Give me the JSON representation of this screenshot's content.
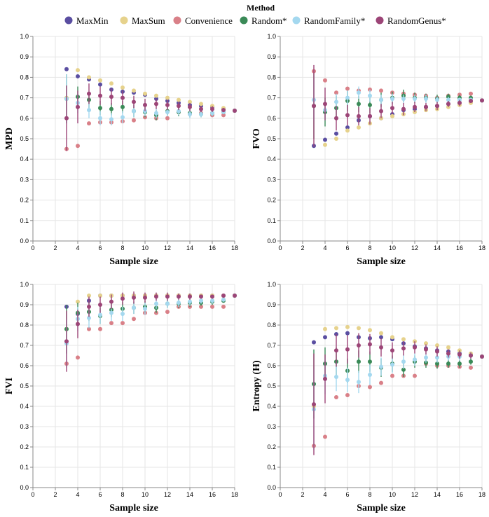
{
  "legend": {
    "title": "Method",
    "entries": [
      {
        "name": "MaxMin",
        "color": "#5a4ea1"
      },
      {
        "name": "MaxSum",
        "color": "#e6d28c"
      },
      {
        "name": "Convenience",
        "color": "#d98088"
      },
      {
        "name": "Random*",
        "color": "#3a8a57"
      },
      {
        "name": "RandomFamily*",
        "color": "#a4d8ef"
      },
      {
        "name": "RandomGenus*",
        "color": "#9c4577"
      }
    ]
  },
  "chart_data": [
    {
      "type": "scatter",
      "panel": "top-left",
      "xlabel": "Sample size",
      "ylabel": "MPD",
      "xlim": [
        0,
        18
      ],
      "ylim": [
        0,
        1
      ],
      "xticks": [
        0,
        2,
        4,
        6,
        8,
        10,
        12,
        14,
        16,
        18
      ],
      "yticks": [
        0.0,
        0.1,
        0.2,
        0.3,
        0.4,
        0.5,
        0.6,
        0.7,
        0.8,
        0.9,
        1.0
      ],
      "x": [
        3,
        4,
        5,
        6,
        7,
        8,
        9,
        10,
        11,
        12,
        13,
        14,
        15,
        16,
        17,
        18
      ],
      "series": [
        {
          "name": "MaxMin",
          "values": [
            0.84,
            0.805,
            0.79,
            0.765,
            0.74,
            0.73,
            0.725,
            0.715,
            0.695,
            0.685,
            0.675,
            0.665,
            0.66,
            0.655,
            0.645,
            0.637
          ]
        },
        {
          "name": "MaxSum",
          "values": [
            0.7,
            0.835,
            0.8,
            0.785,
            0.77,
            0.75,
            0.735,
            0.72,
            0.71,
            0.7,
            0.69,
            0.68,
            0.67,
            0.66,
            0.65,
            0.637
          ]
        },
        {
          "name": "Convenience",
          "values": [
            0.45,
            0.465,
            0.575,
            0.58,
            0.58,
            0.585,
            0.59,
            0.605,
            0.6,
            0.6,
            0.63,
            0.62,
            0.625,
            0.615,
            0.615,
            0.637
          ]
        },
        {
          "name": "Random*",
          "values": [
            0.695,
            0.705,
            0.69,
            0.65,
            0.645,
            0.655,
            0.635,
            0.63,
            0.615,
            0.635,
            0.63,
            0.625,
            0.62,
            0.625,
            0.63,
            0.637
          ],
          "err": [
            0.12,
            0.05,
            0.04,
            0.035,
            0.03,
            0.03,
            0.03,
            0.025,
            0.025,
            0.02,
            0.02,
            0.02,
            0.015,
            0.015,
            0.01,
            0.0
          ]
        },
        {
          "name": "RandomFamily*",
          "values": [
            0.695,
            0.675,
            0.64,
            0.6,
            0.595,
            0.605,
            0.635,
            0.635,
            0.625,
            0.63,
            0.635,
            0.62,
            0.62,
            0.625,
            0.63,
            0.637
          ],
          "err": [
            0.12,
            0.05,
            0.04,
            0.035,
            0.03,
            0.03,
            0.03,
            0.025,
            0.025,
            0.02,
            0.02,
            0.02,
            0.015,
            0.015,
            0.01,
            0.0
          ]
        },
        {
          "name": "RandomGenus*",
          "values": [
            0.6,
            0.655,
            0.72,
            0.71,
            0.705,
            0.7,
            0.68,
            0.665,
            0.67,
            0.665,
            0.66,
            0.655,
            0.645,
            0.645,
            0.64,
            0.637
          ],
          "err": [
            0.16,
            0.08,
            0.05,
            0.045,
            0.04,
            0.035,
            0.03,
            0.03,
            0.025,
            0.025,
            0.02,
            0.02,
            0.015,
            0.015,
            0.01,
            0.0
          ]
        }
      ]
    },
    {
      "type": "scatter",
      "panel": "top-right",
      "xlabel": "Sample size",
      "ylabel": "FVO",
      "xlim": [
        0,
        18
      ],
      "ylim": [
        0,
        1
      ],
      "xticks": [
        0,
        2,
        4,
        6,
        8,
        10,
        12,
        14,
        16,
        18
      ],
      "yticks": [
        0.0,
        0.1,
        0.2,
        0.3,
        0.4,
        0.5,
        0.6,
        0.7,
        0.8,
        0.9,
        1.0
      ],
      "x": [
        3,
        4,
        5,
        6,
        7,
        8,
        9,
        10,
        11,
        12,
        13,
        14,
        15,
        16,
        17,
        18
      ],
      "series": [
        {
          "name": "MaxMin",
          "values": [
            0.465,
            0.495,
            0.525,
            0.555,
            0.59,
            0.61,
            0.6,
            0.62,
            0.64,
            0.645,
            0.655,
            0.66,
            0.67,
            0.675,
            0.68,
            0.687
          ]
        },
        {
          "name": "MaxSum",
          "values": [
            0.66,
            0.47,
            0.5,
            0.54,
            0.555,
            0.575,
            0.6,
            0.61,
            0.62,
            0.63,
            0.64,
            0.645,
            0.655,
            0.665,
            0.675,
            0.687
          ]
        },
        {
          "name": "Convenience",
          "values": [
            0.83,
            0.785,
            0.725,
            0.745,
            0.735,
            0.74,
            0.735,
            0.725,
            0.72,
            0.715,
            0.71,
            0.7,
            0.71,
            0.715,
            0.72,
            0.687
          ]
        },
        {
          "name": "Random*",
          "values": [
            0.66,
            0.63,
            0.65,
            0.685,
            0.67,
            0.665,
            0.69,
            0.7,
            0.71,
            0.7,
            0.7,
            0.695,
            0.705,
            0.7,
            0.7,
            0.687
          ],
          "err": [
            0.16,
            0.07,
            0.06,
            0.05,
            0.04,
            0.04,
            0.035,
            0.03,
            0.03,
            0.025,
            0.02,
            0.02,
            0.015,
            0.015,
            0.01,
            0.0
          ]
        },
        {
          "name": "RandomFamily*",
          "values": [
            0.69,
            0.64,
            0.68,
            0.7,
            0.725,
            0.71,
            0.69,
            0.695,
            0.695,
            0.695,
            0.695,
            0.69,
            0.69,
            0.69,
            0.69,
            0.687
          ],
          "err": [
            0.1,
            0.05,
            0.04,
            0.035,
            0.03,
            0.03,
            0.025,
            0.025,
            0.02,
            0.02,
            0.02,
            0.015,
            0.015,
            0.01,
            0.01,
            0.0
          ]
        },
        {
          "name": "RandomGenus*",
          "values": [
            0.66,
            0.67,
            0.6,
            0.615,
            0.61,
            0.61,
            0.635,
            0.65,
            0.645,
            0.655,
            0.655,
            0.66,
            0.67,
            0.675,
            0.685,
            0.687
          ],
          "err": [
            0.2,
            0.08,
            0.06,
            0.05,
            0.045,
            0.04,
            0.035,
            0.03,
            0.03,
            0.025,
            0.02,
            0.02,
            0.015,
            0.015,
            0.01,
            0.0
          ]
        }
      ]
    },
    {
      "type": "scatter",
      "panel": "bottom-left",
      "xlabel": "Sample size",
      "ylabel": "FVI",
      "xlim": [
        0,
        18
      ],
      "ylim": [
        0,
        1
      ],
      "xticks": [
        0,
        2,
        4,
        6,
        8,
        10,
        12,
        14,
        16,
        18
      ],
      "yticks": [
        0.0,
        0.1,
        0.2,
        0.3,
        0.4,
        0.5,
        0.6,
        0.7,
        0.8,
        0.9,
        1.0
      ],
      "x": [
        3,
        4,
        5,
        6,
        7,
        8,
        9,
        10,
        11,
        12,
        13,
        14,
        15,
        16,
        17,
        18
      ],
      "series": [
        {
          "name": "MaxMin",
          "values": [
            0.89,
            0.855,
            0.92,
            0.945,
            0.945,
            0.945,
            0.945,
            0.945,
            0.945,
            0.945,
            0.945,
            0.945,
            0.945,
            0.945,
            0.945,
            0.945
          ]
        },
        {
          "name": "MaxSum",
          "values": [
            0.78,
            0.915,
            0.945,
            0.945,
            0.945,
            0.945,
            0.945,
            0.945,
            0.945,
            0.945,
            0.945,
            0.945,
            0.945,
            0.945,
            0.945,
            0.945
          ]
        },
        {
          "name": "Convenience",
          "values": [
            0.61,
            0.64,
            0.78,
            0.78,
            0.81,
            0.81,
            0.83,
            0.86,
            0.86,
            0.865,
            0.89,
            0.89,
            0.89,
            0.89,
            0.89,
            0.945
          ]
        },
        {
          "name": "Random*",
          "values": [
            0.78,
            0.86,
            0.865,
            0.845,
            0.875,
            0.88,
            0.885,
            0.89,
            0.885,
            0.905,
            0.905,
            0.91,
            0.91,
            0.915,
            0.92,
            0.945
          ],
          "err": [
            0.12,
            0.05,
            0.045,
            0.04,
            0.035,
            0.035,
            0.03,
            0.03,
            0.025,
            0.02,
            0.02,
            0.02,
            0.015,
            0.015,
            0.01,
            0.0
          ]
        },
        {
          "name": "RandomFamily*",
          "values": [
            0.71,
            0.83,
            0.835,
            0.85,
            0.86,
            0.855,
            0.885,
            0.88,
            0.905,
            0.905,
            0.91,
            0.915,
            0.92,
            0.92,
            0.925,
            0.945
          ],
          "err": [
            0.12,
            0.06,
            0.05,
            0.045,
            0.04,
            0.035,
            0.03,
            0.03,
            0.025,
            0.02,
            0.02,
            0.02,
            0.015,
            0.015,
            0.01,
            0.0
          ]
        },
        {
          "name": "RandomGenus*",
          "values": [
            0.72,
            0.805,
            0.89,
            0.9,
            0.915,
            0.93,
            0.935,
            0.935,
            0.94,
            0.94,
            0.94,
            0.94,
            0.94,
            0.94,
            0.945,
            0.945
          ],
          "err": [
            0.15,
            0.07,
            0.05,
            0.04,
            0.035,
            0.03,
            0.03,
            0.025,
            0.02,
            0.02,
            0.015,
            0.015,
            0.01,
            0.01,
            0.01,
            0.0
          ]
        }
      ]
    },
    {
      "type": "scatter",
      "panel": "bottom-right",
      "xlabel": "Sample size",
      "ylabel": "Entropy (H)",
      "xlim": [
        0,
        18
      ],
      "ylim": [
        0,
        1
      ],
      "xticks": [
        0,
        2,
        4,
        6,
        8,
        10,
        12,
        14,
        16,
        18
      ],
      "yticks": [
        0.0,
        0.1,
        0.2,
        0.3,
        0.4,
        0.5,
        0.6,
        0.7,
        0.8,
        0.9,
        1.0
      ],
      "x": [
        3,
        4,
        5,
        6,
        7,
        8,
        9,
        10,
        11,
        12,
        13,
        14,
        15,
        16,
        17,
        18
      ],
      "series": [
        {
          "name": "MaxMin",
          "values": [
            0.715,
            0.74,
            0.755,
            0.76,
            0.74,
            0.735,
            0.74,
            0.73,
            0.71,
            0.695,
            0.685,
            0.675,
            0.67,
            0.66,
            0.655,
            0.645
          ]
        },
        {
          "name": "MaxSum",
          "values": [
            0.4,
            0.78,
            0.785,
            0.79,
            0.785,
            0.775,
            0.76,
            0.74,
            0.73,
            0.72,
            0.71,
            0.7,
            0.69,
            0.675,
            0.66,
            0.645
          ]
        },
        {
          "name": "Convenience",
          "values": [
            0.205,
            0.25,
            0.445,
            0.455,
            0.5,
            0.495,
            0.515,
            0.55,
            0.55,
            0.55,
            0.61,
            0.6,
            0.6,
            0.595,
            0.59,
            0.645
          ]
        },
        {
          "name": "Random*",
          "values": [
            0.51,
            0.61,
            0.62,
            0.575,
            0.62,
            0.62,
            0.59,
            0.61,
            0.58,
            0.62,
            0.615,
            0.61,
            0.61,
            0.61,
            0.62,
            0.645
          ],
          "err": [
            0.17,
            0.08,
            0.07,
            0.06,
            0.055,
            0.05,
            0.045,
            0.04,
            0.035,
            0.03,
            0.025,
            0.025,
            0.02,
            0.02,
            0.015,
            0.0
          ]
        },
        {
          "name": "RandomFamily*",
          "values": [
            0.385,
            0.55,
            0.545,
            0.53,
            0.52,
            0.555,
            0.595,
            0.605,
            0.62,
            0.63,
            0.64,
            0.64,
            0.645,
            0.645,
            0.65,
            0.645
          ],
          "err": [
            0.2,
            0.09,
            0.07,
            0.06,
            0.055,
            0.05,
            0.045,
            0.04,
            0.035,
            0.03,
            0.025,
            0.025,
            0.02,
            0.02,
            0.015,
            0.0
          ]
        },
        {
          "name": "RandomGenus*",
          "values": [
            0.41,
            0.535,
            0.675,
            0.68,
            0.7,
            0.705,
            0.69,
            0.675,
            0.685,
            0.69,
            0.68,
            0.67,
            0.66,
            0.655,
            0.65,
            0.645
          ],
          "err": [
            0.25,
            0.12,
            0.08,
            0.07,
            0.06,
            0.05,
            0.045,
            0.04,
            0.035,
            0.03,
            0.025,
            0.025,
            0.02,
            0.02,
            0.015,
            0.0
          ]
        }
      ]
    }
  ]
}
